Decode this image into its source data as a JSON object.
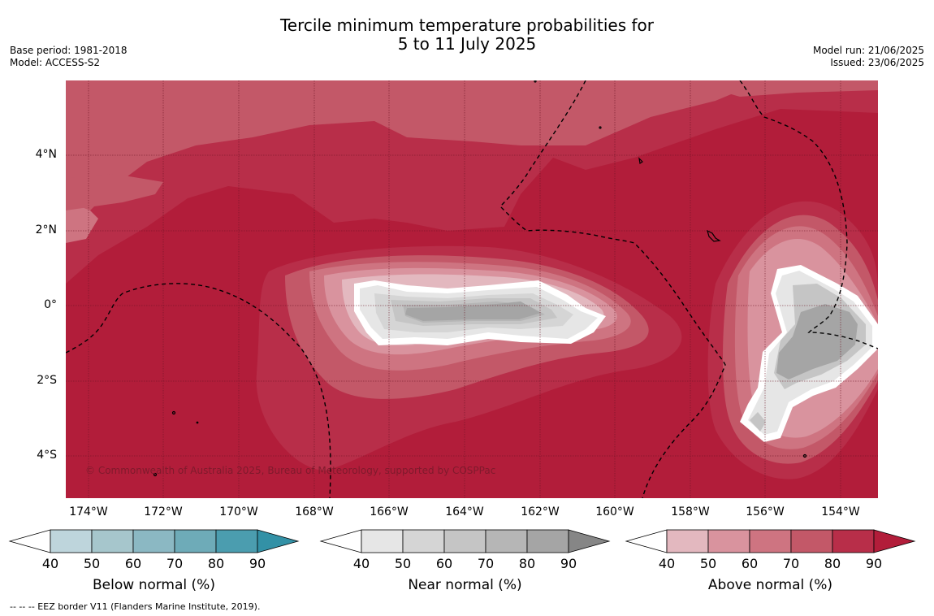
{
  "header": {
    "title_line1": "Tercile minimum temperature probabilities for",
    "title_line2": "5 to 11 July 2025",
    "base_period": "Base period: 1981-2018",
    "model": "Model: ACCESS-S2",
    "model_run": "Model run: 21/06/2025",
    "issued": "Issued: 23/06/2025"
  },
  "map": {
    "copyright": "© Commonwealth of Australia 2025, Bureau of Meteorology, supported by COSPPac",
    "lat_labels": [
      "4°N",
      "2°N",
      "0°",
      "2°S",
      "4°S"
    ],
    "lon_labels": [
      "174°W",
      "172°W",
      "170°W",
      "168°W",
      "166°W",
      "164°W",
      "162°W",
      "160°W",
      "158°W",
      "156°W",
      "154°W"
    ],
    "colors": {
      "above": [
        "#e3b8bf",
        "#d9939e",
        "#ce7481",
        "#c35868",
        "#b82e49",
        "#b21d3a"
      ],
      "near": [
        "#e6e6e6",
        "#d5d5d5",
        "#c5c5c5",
        "#b6b6b6",
        "#a5a5a5",
        "#868686"
      ],
      "below": [
        "#bed5dc",
        "#a6c6cc",
        "#8bb8c3",
        "#6eabb8",
        "#4b9daf",
        "#3391a6"
      ]
    }
  },
  "colorbars": [
    {
      "label": "Below normal (%)",
      "ticks": [
        "40",
        "50",
        "60",
        "70",
        "80",
        "90"
      ]
    },
    {
      "label": "Near normal (%)",
      "ticks": [
        "40",
        "50",
        "60",
        "70",
        "80",
        "90"
      ]
    },
    {
      "label": "Above normal (%)",
      "ticks": [
        "40",
        "50",
        "60",
        "70",
        "80",
        "90"
      ]
    }
  ],
  "footnote": "--  --  -- EEZ border V11 (Flanders Marine Institute, 2019)."
}
